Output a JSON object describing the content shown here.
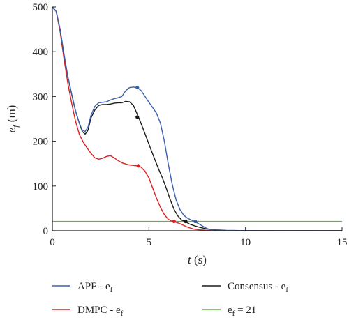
{
  "chart_data": {
    "type": "line",
    "xlabel": {
      "var": "t",
      "unit": " (s)"
    },
    "ylabel": {
      "var": "e",
      "sub": "f",
      "unit": " (m)"
    },
    "xlim": [
      0,
      15
    ],
    "ylim": [
      0,
      500
    ],
    "xticks": [
      0,
      5,
      10,
      15
    ],
    "yticks": [
      0,
      100,
      200,
      300,
      400,
      500
    ],
    "grid": false,
    "legend_placement": "bottom",
    "series": [
      {
        "name": "APF - e",
        "name_sub": "f",
        "color": "#3a5fad",
        "x": [
          0,
          0.2,
          0.4,
          0.6,
          0.8,
          1.0,
          1.2,
          1.4,
          1.55,
          1.7,
          1.85,
          2.0,
          2.2,
          2.4,
          2.6,
          2.8,
          3.0,
          3.2,
          3.4,
          3.6,
          3.8,
          4.0,
          4.2,
          4.4,
          4.6,
          4.8,
          5.0,
          5.2,
          5.4,
          5.6,
          5.8,
          6.0,
          6.2,
          6.4,
          6.6,
          6.8,
          7.0,
          7.2,
          7.4,
          7.6,
          7.8,
          8.0,
          8.2,
          8.4,
          8.6,
          9.0,
          10.0,
          15.0
        ],
        "y": [
          500,
          490,
          450,
          395,
          345,
          305,
          268,
          240,
          225,
          222,
          232,
          258,
          278,
          286,
          287,
          288,
          292,
          295,
          297,
          300,
          313,
          320,
          321,
          320,
          313,
          300,
          287,
          275,
          262,
          240,
          200,
          150,
          105,
          70,
          48,
          35,
          28,
          24,
          20,
          15,
          10,
          5,
          2.5,
          1.5,
          1,
          0.5,
          0.2,
          0
        ]
      },
      {
        "name": "Consensus - e",
        "name_sub": "f",
        "color": "#1a1a1a",
        "x": [
          0,
          0.2,
          0.4,
          0.6,
          0.8,
          1.0,
          1.2,
          1.4,
          1.55,
          1.7,
          1.85,
          2.0,
          2.2,
          2.4,
          2.6,
          2.8,
          3.0,
          3.2,
          3.4,
          3.6,
          3.8,
          4.0,
          4.2,
          4.35,
          4.5,
          4.7,
          4.9,
          5.1,
          5.3,
          5.5,
          5.7,
          5.9,
          6.1,
          6.3,
          6.5,
          6.7,
          6.9,
          7.1,
          7.3,
          7.6,
          8.0,
          8.4,
          9.0,
          10.0,
          15.0
        ],
        "y": [
          500,
          490,
          450,
          395,
          345,
          305,
          268,
          240,
          222,
          216,
          225,
          252,
          270,
          280,
          282,
          282,
          283,
          285,
          286,
          286,
          289,
          288,
          280,
          265,
          250,
          228,
          205,
          182,
          160,
          138,
          118,
          95,
          70,
          48,
          33,
          24,
          20,
          15,
          12,
          8,
          4,
          2,
          0.8,
          0.2,
          0
        ]
      },
      {
        "name": "DMPC - e",
        "name_sub": "f",
        "color": "#e02020",
        "x": [
          0,
          0.2,
          0.4,
          0.6,
          0.8,
          1.0,
          1.2,
          1.4,
          1.6,
          1.8,
          2.0,
          2.2,
          2.4,
          2.6,
          2.8,
          3.0,
          3.2,
          3.4,
          3.6,
          3.8,
          4.0,
          4.2,
          4.45,
          4.6,
          4.8,
          5.0,
          5.2,
          5.4,
          5.6,
          5.8,
          6.0,
          6.2,
          6.4,
          6.6,
          6.8,
          7.0,
          7.3,
          7.6,
          8.0,
          9.0,
          10.0,
          15.0
        ],
        "y": [
          500,
          490,
          445,
          385,
          330,
          285,
          245,
          215,
          198,
          185,
          173,
          163,
          160,
          162,
          166,
          168,
          163,
          157,
          152,
          149,
          147,
          146,
          145,
          142,
          133,
          118,
          95,
          72,
          52,
          36,
          26,
          21,
          19,
          16,
          12,
          8,
          4,
          2,
          1,
          0.3,
          0.1,
          0
        ]
      },
      {
        "name": "e",
        "name_sub": "f",
        "name_suffix": " = 21",
        "color": "#5cb83a",
        "x": [
          0,
          15
        ],
        "y": [
          21,
          21
        ]
      }
    ],
    "markers": [
      {
        "series": 0,
        "x": 4.4,
        "y": 320
      },
      {
        "series": 0,
        "x": 7.4,
        "y": 21
      },
      {
        "series": 1,
        "x": 4.4,
        "y": 254
      },
      {
        "series": 1,
        "x": 6.9,
        "y": 21
      },
      {
        "series": 2,
        "x": 4.45,
        "y": 145
      },
      {
        "series": 2,
        "x": 6.3,
        "y": 21
      }
    ]
  }
}
